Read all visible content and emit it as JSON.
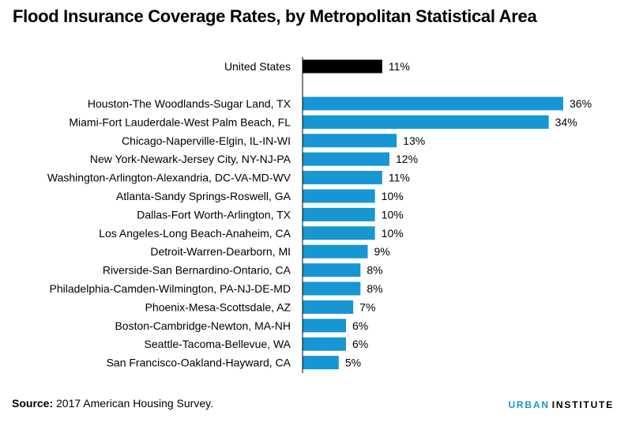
{
  "title": "Flood Insurance Coverage Rates, by Metropolitan Statistical Area",
  "source": {
    "label": "Source:",
    "text": " 2017 American Housing Survey."
  },
  "brand": {
    "part1": "URBAN",
    "part2": "INSTITUTE"
  },
  "colors": {
    "highlight": "#000000",
    "bar": "#1696d2",
    "axis": "#000000"
  },
  "chart_data": {
    "type": "bar",
    "orientation": "horizontal",
    "grid": false,
    "xlim": [
      0,
      36
    ],
    "highlight": {
      "category": "United States",
      "value": 11,
      "label": "11%"
    },
    "categories": [
      "Houston-The Woodlands-Sugar Land, TX",
      "Miami-Fort Lauderdale-West Palm Beach, FL",
      "Chicago-Naperville-Elgin, IL-IN-WI",
      "New York-Newark-Jersey City, NY-NJ-PA",
      "Washington-Arlington-Alexandria, DC-VA-MD-WV",
      "Atlanta-Sandy Springs-Roswell, GA",
      "Dallas-Fort Worth-Arlington, TX",
      "Los Angeles-Long Beach-Anaheim, CA",
      "Detroit-Warren-Dearborn, MI",
      "Riverside-San Bernardino-Ontario, CA",
      "Philadelphia-Camden-Wilmington, PA-NJ-DE-MD",
      "Phoenix-Mesa-Scottsdale, AZ",
      "Boston-Cambridge-Newton, MA-NH",
      "Seattle-Tacoma-Bellevue, WA",
      "San Francisco-Oakland-Hayward, CA"
    ],
    "values": [
      36,
      34,
      13,
      12,
      11,
      10,
      10,
      10,
      9,
      8,
      8,
      7,
      6,
      6,
      5
    ],
    "labels": [
      "36%",
      "34%",
      "13%",
      "12%",
      "11%",
      "10%",
      "10%",
      "10%",
      "9%",
      "8%",
      "8%",
      "7%",
      "6%",
      "6%",
      "5%"
    ]
  }
}
